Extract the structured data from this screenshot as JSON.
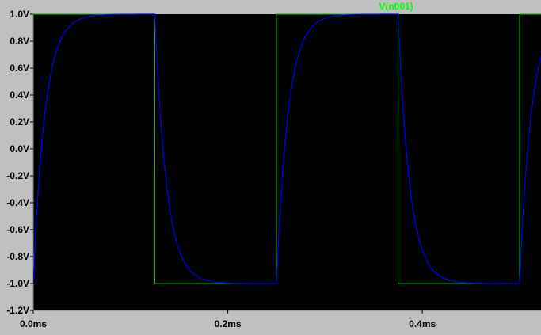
{
  "colors": {
    "background": "#c0c0c0",
    "plot_background": "#000000",
    "axis": "#808080",
    "input_trace": "#00c000",
    "output_trace": "#0000ff",
    "legend_text": "#00ff00"
  },
  "chart_data": {
    "type": "line",
    "title": "",
    "xlabel": "",
    "ylabel": "",
    "xlim": [
      0,
      0.5
    ],
    "ylim": [
      -1.2,
      1.0
    ],
    "grid": false,
    "x_unit": "ms",
    "x_ticks": [
      {
        "value": 0.0,
        "label": "0.0ms"
      },
      {
        "value": 0.2,
        "label": "0.2ms"
      },
      {
        "value": 0.4,
        "label": "0.4ms"
      }
    ],
    "y_ticks": [
      {
        "value": 1.0,
        "label": "1.0V"
      },
      {
        "value": 0.8,
        "label": "0.8V"
      },
      {
        "value": 0.6,
        "label": "0.6V"
      },
      {
        "value": 0.4,
        "label": "0.4V"
      },
      {
        "value": 0.2,
        "label": "0.2V"
      },
      {
        "value": 0.0,
        "label": "0.0V"
      },
      {
        "value": -0.2,
        "label": "-0.2V"
      },
      {
        "value": -0.4,
        "label": "-0.4V"
      },
      {
        "value": -0.6,
        "label": "-0.6V"
      },
      {
        "value": -0.8,
        "label": "-0.8V"
      },
      {
        "value": -1.0,
        "label": "-1.0V"
      },
      {
        "value": -1.2,
        "label": "-1.2V"
      }
    ],
    "legend": [
      "V(n001)"
    ],
    "series": [
      {
        "color": "#00c000",
        "shape": "square",
        "x": [
          0.0,
          0.125,
          0.125,
          0.25,
          0.25,
          0.375,
          0.375,
          0.5,
          0.5
        ],
        "y": [
          1.0,
          1.0,
          -1.0,
          -1.0,
          1.0,
          1.0,
          -1.0,
          -1.0,
          1.0
        ]
      },
      {
        "name": "V(n001)",
        "color": "#0000ff",
        "shape": "rc-response",
        "period": 0.25,
        "amplitude": 1.0,
        "tau": 0.012,
        "x": [
          0.0,
          0.01,
          0.02,
          0.04,
          0.07,
          0.125,
          0.135,
          0.145,
          0.165,
          0.195,
          0.25,
          0.26,
          0.27,
          0.29,
          0.32,
          0.375,
          0.385,
          0.395,
          0.415,
          0.445,
          0.5
        ],
        "y": [
          -1.0,
          0.13,
          0.61,
          0.93,
          1.0,
          1.0,
          -0.13,
          -0.61,
          -0.93,
          -1.0,
          -1.0,
          0.13,
          0.61,
          0.93,
          1.0,
          1.0,
          -0.13,
          -0.61,
          -0.93,
          -1.0,
          -1.0
        ]
      }
    ]
  }
}
